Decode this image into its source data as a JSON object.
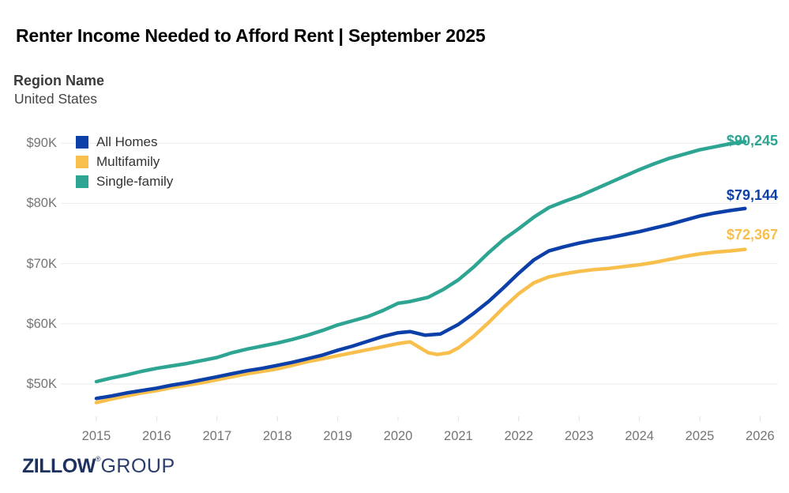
{
  "header": {
    "title": "Renter Income Needed to Afford Rent | September 2025",
    "region_label": "Region Name",
    "region_value": "United States"
  },
  "footer": {
    "logo_primary": "ZILLOW",
    "logo_registered": "®",
    "logo_secondary": "GROUP"
  },
  "colors": {
    "all_homes": "#0D3FA8",
    "multifamily": "#F8BF4D",
    "single_family": "#2EA493",
    "gridline": "#EBEBEB",
    "tick_mark": "#DEDEDE",
    "axis_text": "#757575"
  },
  "chart_data": {
    "type": "line",
    "title": "Renter Income Needed to Afford Rent | September 2025",
    "region": "United States",
    "xlabel": "",
    "ylabel": "",
    "x_range": [
      2015,
      2026
    ],
    "y_range": [
      46000,
      92000
    ],
    "grid": "horizontal",
    "legend_position": "top-left",
    "x_ticks": [
      {
        "value": 2015,
        "label": "2015"
      },
      {
        "value": 2016,
        "label": "2016"
      },
      {
        "value": 2017,
        "label": "2017"
      },
      {
        "value": 2018,
        "label": "2018"
      },
      {
        "value": 2019,
        "label": "2019"
      },
      {
        "value": 2020,
        "label": "2020"
      },
      {
        "value": 2021,
        "label": "2021"
      },
      {
        "value": 2022,
        "label": "2022"
      },
      {
        "value": 2023,
        "label": "2023"
      },
      {
        "value": 2024,
        "label": "2024"
      },
      {
        "value": 2025,
        "label": "2025"
      },
      {
        "value": 2026,
        "label": "2026"
      }
    ],
    "y_ticks": [
      {
        "value": 50000,
        "label": "$50K"
      },
      {
        "value": 60000,
        "label": "$60K"
      },
      {
        "value": 70000,
        "label": "$70K"
      },
      {
        "value": 80000,
        "label": "$80K"
      },
      {
        "value": 90000,
        "label": "$90K"
      }
    ],
    "series": [
      {
        "name": "All Homes",
        "color": "#0D3FA8",
        "end_label": "$79,144",
        "final_value": 79144,
        "points": [
          [
            2015,
            47600
          ],
          [
            2015.25,
            48000
          ],
          [
            2015.5,
            48500
          ],
          [
            2015.75,
            48900
          ],
          [
            2016,
            49300
          ],
          [
            2016.25,
            49800
          ],
          [
            2016.5,
            50200
          ],
          [
            2016.75,
            50700
          ],
          [
            2017,
            51200
          ],
          [
            2017.25,
            51700
          ],
          [
            2017.5,
            52200
          ],
          [
            2017.75,
            52600
          ],
          [
            2018,
            53100
          ],
          [
            2018.25,
            53600
          ],
          [
            2018.5,
            54200
          ],
          [
            2018.75,
            54800
          ],
          [
            2019,
            55600
          ],
          [
            2019.25,
            56300
          ],
          [
            2019.5,
            57100
          ],
          [
            2019.75,
            57900
          ],
          [
            2020,
            58500
          ],
          [
            2020.2,
            58700
          ],
          [
            2020.45,
            58100
          ],
          [
            2020.7,
            58300
          ],
          [
            2021,
            59900
          ],
          [
            2021.25,
            61700
          ],
          [
            2021.5,
            63700
          ],
          [
            2021.75,
            66000
          ],
          [
            2022,
            68400
          ],
          [
            2022.25,
            70600
          ],
          [
            2022.5,
            72100
          ],
          [
            2022.75,
            72800
          ],
          [
            2023,
            73400
          ],
          [
            2023.25,
            73900
          ],
          [
            2023.5,
            74300
          ],
          [
            2023.75,
            74800
          ],
          [
            2024,
            75300
          ],
          [
            2024.25,
            75900
          ],
          [
            2024.5,
            76500
          ],
          [
            2024.75,
            77200
          ],
          [
            2025,
            77900
          ],
          [
            2025.25,
            78400
          ],
          [
            2025.5,
            78800
          ],
          [
            2025.75,
            79144
          ]
        ]
      },
      {
        "name": "Multifamily",
        "color": "#F8BF4D",
        "end_label": "$72,367",
        "final_value": 72367,
        "points": [
          [
            2015,
            46900
          ],
          [
            2015.25,
            47500
          ],
          [
            2015.5,
            48000
          ],
          [
            2015.75,
            48500
          ],
          [
            2016,
            48900
          ],
          [
            2016.25,
            49400
          ],
          [
            2016.5,
            49800
          ],
          [
            2016.75,
            50200
          ],
          [
            2017,
            50700
          ],
          [
            2017.25,
            51200
          ],
          [
            2017.5,
            51700
          ],
          [
            2017.75,
            52100
          ],
          [
            2018,
            52500
          ],
          [
            2018.25,
            53100
          ],
          [
            2018.5,
            53700
          ],
          [
            2018.75,
            54200
          ],
          [
            2019,
            54700
          ],
          [
            2019.25,
            55200
          ],
          [
            2019.5,
            55700
          ],
          [
            2019.75,
            56200
          ],
          [
            2020,
            56700
          ],
          [
            2020.2,
            57000
          ],
          [
            2020.5,
            55200
          ],
          [
            2020.65,
            54900
          ],
          [
            2020.85,
            55200
          ],
          [
            2021,
            56000
          ],
          [
            2021.25,
            57900
          ],
          [
            2021.5,
            60200
          ],
          [
            2021.75,
            62700
          ],
          [
            2022,
            65000
          ],
          [
            2022.25,
            66800
          ],
          [
            2022.5,
            67800
          ],
          [
            2022.75,
            68300
          ],
          [
            2023,
            68700
          ],
          [
            2023.25,
            69000
          ],
          [
            2023.5,
            69200
          ],
          [
            2023.75,
            69500
          ],
          [
            2024,
            69800
          ],
          [
            2024.25,
            70200
          ],
          [
            2024.5,
            70700
          ],
          [
            2024.75,
            71200
          ],
          [
            2025,
            71600
          ],
          [
            2025.25,
            71900
          ],
          [
            2025.5,
            72100
          ],
          [
            2025.75,
            72367
          ]
        ]
      },
      {
        "name": "Single-family",
        "color": "#2EA493",
        "end_label": "$90,245",
        "final_value": 90245,
        "points": [
          [
            2015,
            50400
          ],
          [
            2015.25,
            51000
          ],
          [
            2015.5,
            51500
          ],
          [
            2015.75,
            52100
          ],
          [
            2016,
            52600
          ],
          [
            2016.25,
            53000
          ],
          [
            2016.5,
            53400
          ],
          [
            2016.75,
            53900
          ],
          [
            2017,
            54400
          ],
          [
            2017.25,
            55200
          ],
          [
            2017.5,
            55800
          ],
          [
            2017.75,
            56300
          ],
          [
            2018,
            56800
          ],
          [
            2018.25,
            57400
          ],
          [
            2018.5,
            58100
          ],
          [
            2018.75,
            58900
          ],
          [
            2019,
            59800
          ],
          [
            2019.25,
            60500
          ],
          [
            2019.5,
            61200
          ],
          [
            2019.75,
            62200
          ],
          [
            2020,
            63400
          ],
          [
            2020.2,
            63700
          ],
          [
            2020.5,
            64400
          ],
          [
            2020.75,
            65700
          ],
          [
            2021,
            67300
          ],
          [
            2021.25,
            69400
          ],
          [
            2021.5,
            71800
          ],
          [
            2021.75,
            74000
          ],
          [
            2022,
            75800
          ],
          [
            2022.25,
            77700
          ],
          [
            2022.5,
            79300
          ],
          [
            2022.75,
            80300
          ],
          [
            2023,
            81200
          ],
          [
            2023.25,
            82300
          ],
          [
            2023.5,
            83400
          ],
          [
            2023.75,
            84500
          ],
          [
            2024,
            85600
          ],
          [
            2024.25,
            86600
          ],
          [
            2024.5,
            87500
          ],
          [
            2024.75,
            88200
          ],
          [
            2025,
            88900
          ],
          [
            2025.25,
            89400
          ],
          [
            2025.5,
            89900
          ],
          [
            2025.75,
            90245
          ]
        ]
      }
    ],
    "legend": [
      "All Homes",
      "Multifamily",
      "Single-family"
    ]
  }
}
